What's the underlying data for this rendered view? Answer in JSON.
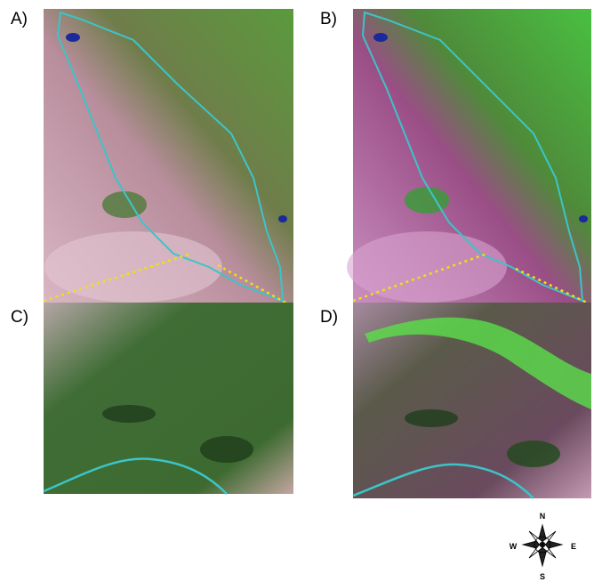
{
  "panels": [
    {
      "label": "A)"
    },
    {
      "label": "B)"
    },
    {
      "label": "C)"
    },
    {
      "label": "D)"
    }
  ],
  "compass": {
    "north": "N",
    "east": "E",
    "south": "S",
    "west": "W"
  }
}
